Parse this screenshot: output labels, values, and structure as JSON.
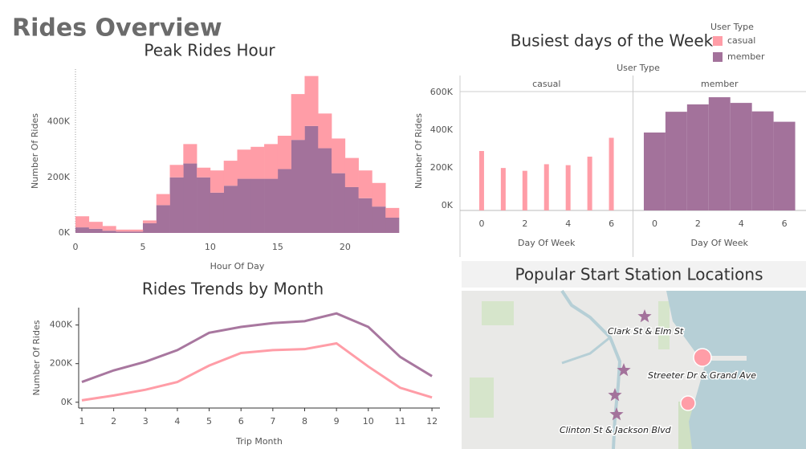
{
  "title": "Rides Overview",
  "chart_data": [
    {
      "type": "histogram",
      "title": "Peak Rides Hour",
      "x_label": "Hour Of Day",
      "y_label": "Number Of Rides",
      "bins": [
        0,
        1,
        2,
        3,
        4,
        5,
        6,
        7,
        8,
        9,
        10,
        11,
        12,
        13,
        14,
        15,
        16,
        17,
        18,
        19,
        20,
        21,
        22,
        23,
        24
      ],
      "stacked": true,
      "series": [
        {
          "color": "#a3729b",
          "values": [
            20000,
            15000,
            8000,
            5000,
            5000,
            35000,
            100000,
            200000,
            250000,
            200000,
            145000,
            170000,
            195000,
            195000,
            195000,
            230000,
            335000,
            385000,
            305000,
            215000,
            165000,
            125000,
            95000,
            55000
          ]
        },
        {
          "color": "#ff9da7",
          "values": [
            40000,
            25000,
            17000,
            7000,
            7000,
            10000,
            40000,
            45000,
            70000,
            35000,
            80000,
            90000,
            105000,
            115000,
            125000,
            120000,
            165000,
            180000,
            125000,
            125000,
            105000,
            100000,
            85000,
            35000
          ]
        }
      ],
      "xlim": [
        0,
        24
      ],
      "xticks": [
        0,
        5,
        10,
        15,
        20
      ],
      "ylim": [
        0,
        590000
      ],
      "yticks": [
        {
          "value": 0,
          "label": "0K"
        },
        {
          "value": 200000,
          "label": "200K"
        },
        {
          "value": 400000,
          "label": "400K"
        }
      ]
    },
    {
      "type": "line",
      "title": "Rides Trends by Month",
      "x_label": "Trip Month",
      "y_label": "Number Of Rides",
      "x": [
        1,
        2,
        3,
        4,
        5,
        6,
        7,
        8,
        9,
        10,
        11,
        12
      ],
      "series": [
        {
          "color": "#a8779f",
          "values": [
            105000,
            165000,
            210000,
            270000,
            360000,
            390000,
            410000,
            420000,
            460000,
            390000,
            235000,
            135000
          ]
        },
        {
          "color": "#ff9da7",
          "values": [
            10000,
            35000,
            65000,
            105000,
            190000,
            255000,
            270000,
            275000,
            305000,
            185000,
            75000,
            25000
          ]
        }
      ],
      "xlim": [
        0.9,
        12.25
      ],
      "xticks": [
        1,
        2,
        3,
        4,
        5,
        6,
        7,
        8,
        9,
        10,
        11,
        12
      ],
      "ylim": [
        -30000,
        490000
      ],
      "yticks": [
        {
          "value": 0,
          "label": "0K"
        },
        {
          "value": 200000,
          "label": "200K"
        },
        {
          "value": 400000,
          "label": "400K"
        }
      ]
    },
    {
      "type": "faceted-bar",
      "title": "Busiest days of the Week",
      "legend_title": "User Type",
      "legend_position": "top-right",
      "facet_label": "User Type",
      "x_label": "Day Of Week",
      "y_label": "Number Of Rides",
      "x": [
        0,
        1,
        2,
        3,
        4,
        5,
        6
      ],
      "series": [
        {
          "name": "casual",
          "color": "#ff9da7",
          "values": [
            315000,
            225000,
            210000,
            245000,
            240000,
            285000,
            385000
          ]
        },
        {
          "name": "member",
          "color": "#a3729b",
          "values": [
            413000,
            523000,
            562000,
            600000,
            570000,
            525000,
            470000
          ]
        }
      ],
      "xlim": [
        -1,
        7
      ],
      "xticks": [
        0,
        2,
        4,
        6
      ],
      "ylim": [
        0,
        630000
      ],
      "yticks": [
        {
          "value": 0,
          "label": "0K"
        },
        {
          "value": 200000,
          "label": "200K"
        },
        {
          "value": 400000,
          "label": "400K"
        },
        {
          "value": 600000,
          "label": "600K"
        }
      ]
    }
  ],
  "map": {
    "title": "Popular Start Station Locations",
    "stations": [
      "Clark St & Elm St",
      "Streeter Dr & Grand Ave",
      "Clinton St & Jackson Blvd"
    ]
  }
}
